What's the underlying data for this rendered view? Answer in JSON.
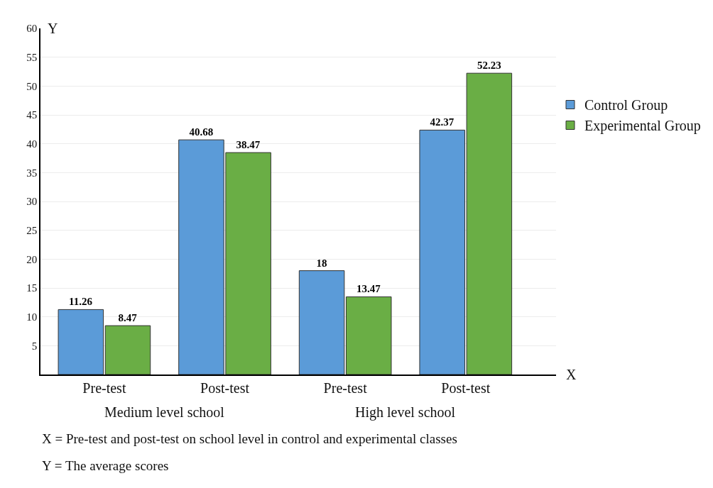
{
  "chart_data": {
    "type": "bar",
    "categories": [
      "Pre-test",
      "Post-test",
      "Pre-test",
      "Post-test"
    ],
    "series": [
      {
        "name": "Control Group",
        "color": "#5b9bd8",
        "values": [
          11.26,
          40.68,
          18,
          42.37
        ]
      },
      {
        "name": "Experimental Group",
        "color": "#6aae45",
        "values": [
          8.47,
          38.47,
          13.47,
          52.23
        ]
      }
    ],
    "xlabel": "X",
    "ylabel": "Y",
    "ylim": [
      0,
      60
    ],
    "yticks": [
      5,
      10,
      15,
      20,
      25,
      30,
      35,
      40,
      45,
      50,
      55,
      60
    ],
    "data_labels": true,
    "grid": "y",
    "legend": "right",
    "annotations": [
      "Medium level school",
      "High level school",
      "X = Pre-test and post-test on school level in control and experimental classes",
      "Y = The average scores"
    ]
  }
}
